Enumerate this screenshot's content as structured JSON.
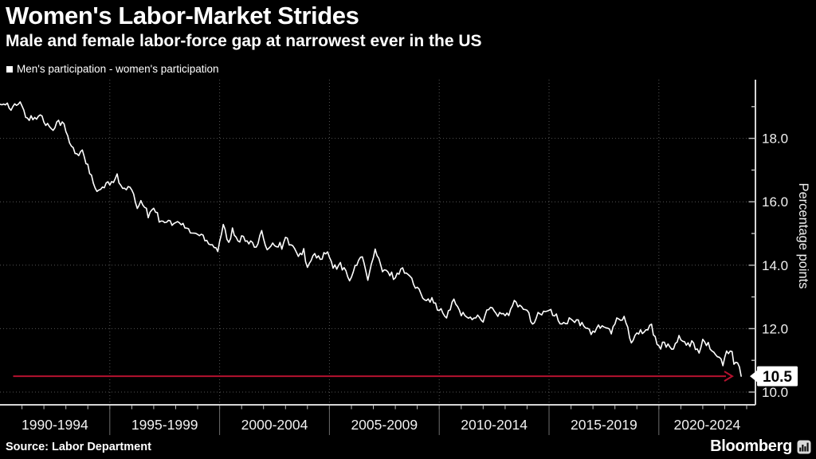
{
  "header": {
    "title": "Women's Labor-Market Strides",
    "subtitle": "Male and female labor-force gap at narrowest ever in the US"
  },
  "legend": {
    "swatch_color": "#ffffff",
    "label": "Men's participation - women's participation"
  },
  "footer": {
    "source": "Source: Labor Department",
    "brand": "Bloomberg",
    "brand_icon": "bar-chart-icon"
  },
  "colors": {
    "background": "#000000",
    "series_line": "#ffffff",
    "grid": "#555555",
    "axis": "#d6d6d6",
    "tick": "#c2c2c2",
    "divider": "#6e6e6e",
    "label": "#f0f0f0",
    "trend_arrow": "#b5122f",
    "callout_bg": "#ffffff",
    "callout_text": "#000000"
  },
  "chart_data": {
    "type": "line",
    "title": "Women's Labor-Market Strides",
    "subtitle": "Male and female labor-force gap at narrowest ever in the US",
    "series_name": "Men's participation - women's participation",
    "ylabel": "Percentage points",
    "unit": "percentage points",
    "frequency": "monthly",
    "grid": "dotted",
    "legend_position": "top-left",
    "x_tick_labels": [
      "1990-1994",
      "1995-1999",
      "2000-2004",
      "2005-2009",
      "2010-2014",
      "2015-2019",
      "2020-2024"
    ],
    "x_separator_years": [
      1995,
      2000,
      2005,
      2010,
      2015,
      2020
    ],
    "x_start_year": 1990.0,
    "x_end_year": 2023.75,
    "y_major_ticks": [
      10,
      12,
      14,
      16,
      18
    ],
    "y_tick_labels": [
      "10.0",
      "12.0",
      "14.0",
      "16.0",
      "18.0"
    ],
    "y_minor_ticks": [
      11,
      13,
      15,
      17,
      19
    ],
    "ylim": [
      9.6,
      19.85
    ],
    "current_value": 10.5,
    "current_value_label": "10.5",
    "trend_arrow": {
      "value": 10.5,
      "x_start_year": 1990.6,
      "x_end_year": 2023.3
    },
    "noise_amplitude": 0.1,
    "anchors": [
      [
        1990.0,
        19.1
      ],
      [
        1990.25,
        19.15
      ],
      [
        1990.5,
        18.9
      ],
      [
        1990.75,
        19.05
      ],
      [
        1990.92,
        19.1
      ],
      [
        1991.17,
        18.7
      ],
      [
        1991.5,
        18.6
      ],
      [
        1991.83,
        18.75
      ],
      [
        1992.08,
        18.45
      ],
      [
        1992.42,
        18.35
      ],
      [
        1992.67,
        18.55
      ],
      [
        1992.92,
        18.4
      ],
      [
        1993.17,
        17.85
      ],
      [
        1993.5,
        17.45
      ],
      [
        1993.75,
        17.65
      ],
      [
        1994.0,
        17.1
      ],
      [
        1994.42,
        16.25
      ],
      [
        1994.75,
        16.5
      ],
      [
        1995.0,
        16.55
      ],
      [
        1995.33,
        16.85
      ],
      [
        1995.58,
        16.35
      ],
      [
        1995.92,
        16.45
      ],
      [
        1996.25,
        15.85
      ],
      [
        1996.5,
        16.0
      ],
      [
        1996.75,
        15.55
      ],
      [
        1997.0,
        15.85
      ],
      [
        1997.25,
        15.45
      ],
      [
        1997.58,
        15.4
      ],
      [
        1997.92,
        15.3
      ],
      [
        1998.17,
        15.35
      ],
      [
        1998.5,
        15.15
      ],
      [
        1998.83,
        15.0
      ],
      [
        1999.17,
        14.95
      ],
      [
        1999.5,
        14.75
      ],
      [
        1999.92,
        14.5
      ],
      [
        2000.17,
        15.3
      ],
      [
        2000.42,
        14.65
      ],
      [
        2000.58,
        15.1
      ],
      [
        2000.83,
        14.7
      ],
      [
        2001.0,
        14.95
      ],
      [
        2001.33,
        14.75
      ],
      [
        2001.67,
        14.55
      ],
      [
        2001.92,
        15.0
      ],
      [
        2002.17,
        14.55
      ],
      [
        2002.5,
        14.7
      ],
      [
        2002.83,
        14.6
      ],
      [
        2003.0,
        14.85
      ],
      [
        2003.33,
        14.6
      ],
      [
        2003.58,
        14.2
      ],
      [
        2003.83,
        14.5
      ],
      [
        2004.0,
        13.9
      ],
      [
        2004.33,
        14.35
      ],
      [
        2004.58,
        14.2
      ],
      [
        2004.92,
        14.4
      ],
      [
        2005.17,
        13.9
      ],
      [
        2005.5,
        14.0
      ],
      [
        2005.92,
        13.6
      ],
      [
        2006.17,
        13.9
      ],
      [
        2006.5,
        14.35
      ],
      [
        2006.75,
        13.5
      ],
      [
        2007.08,
        14.5
      ],
      [
        2007.42,
        13.8
      ],
      [
        2007.75,
        13.75
      ],
      [
        2008.0,
        13.6
      ],
      [
        2008.25,
        13.9
      ],
      [
        2008.58,
        13.75
      ],
      [
        2008.92,
        13.3
      ],
      [
        2009.33,
        13.0
      ],
      [
        2009.67,
        12.9
      ],
      [
        2010.0,
        12.6
      ],
      [
        2010.33,
        12.35
      ],
      [
        2010.67,
        12.9
      ],
      [
        2011.0,
        12.5
      ],
      [
        2011.33,
        12.3
      ],
      [
        2011.67,
        12.4
      ],
      [
        2012.0,
        12.3
      ],
      [
        2012.25,
        12.65
      ],
      [
        2012.58,
        12.5
      ],
      [
        2012.92,
        12.4
      ],
      [
        2013.17,
        12.45
      ],
      [
        2013.42,
        12.85
      ],
      [
        2013.75,
        12.6
      ],
      [
        2014.0,
        12.65
      ],
      [
        2014.25,
        12.15
      ],
      [
        2014.58,
        12.5
      ],
      [
        2015.0,
        12.55
      ],
      [
        2015.33,
        12.4
      ],
      [
        2015.58,
        12.1
      ],
      [
        2016.0,
        12.3
      ],
      [
        2016.42,
        12.15
      ],
      [
        2016.92,
        11.9
      ],
      [
        2017.17,
        12.0
      ],
      [
        2017.5,
        12.1
      ],
      [
        2017.83,
        11.85
      ],
      [
        2018.08,
        12.25
      ],
      [
        2018.42,
        12.4
      ],
      [
        2018.75,
        11.6
      ],
      [
        2019.08,
        11.9
      ],
      [
        2019.42,
        11.95
      ],
      [
        2019.67,
        12.05
      ],
      [
        2020.0,
        11.4
      ],
      [
        2020.25,
        11.55
      ],
      [
        2020.58,
        11.3
      ],
      [
        2020.92,
        11.75
      ],
      [
        2021.25,
        11.4
      ],
      [
        2021.5,
        11.6
      ],
      [
        2021.83,
        11.25
      ],
      [
        2022.0,
        11.7
      ],
      [
        2022.33,
        11.4
      ],
      [
        2022.58,
        11.2
      ],
      [
        2022.92,
        10.9
      ],
      [
        2023.08,
        11.2
      ],
      [
        2023.33,
        11.3
      ],
      [
        2023.45,
        10.78
      ],
      [
        2023.55,
        11.05
      ],
      [
        2023.63,
        10.73
      ],
      [
        2023.7,
        10.82
      ],
      [
        2023.75,
        10.5
      ]
    ]
  }
}
